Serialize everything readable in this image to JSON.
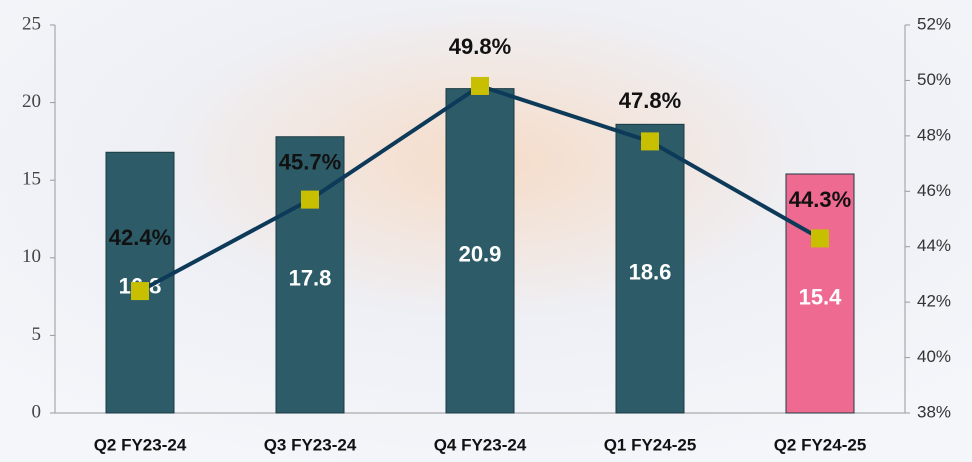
{
  "chart_data": {
    "type": "bar",
    "categories": [
      "Q2 FY23-24",
      "Q3 FY23-24",
      "Q4 FY23-24",
      "Q1 FY24-25",
      "Q2 FY24-25"
    ],
    "series": [
      {
        "type": "bar",
        "values": [
          16.8,
          17.8,
          20.9,
          18.6,
          15.4
        ],
        "colors": [
          "#2d5c68",
          "#2d5c68",
          "#2d5c68",
          "#2d5c68",
          "#ef6a90"
        ]
      },
      {
        "type": "line",
        "axis": "y2",
        "values": [
          42.4,
          45.7,
          49.8,
          47.8,
          44.3
        ],
        "value_labels": [
          "42.4%",
          "45.7%",
          "49.8%",
          "47.8%",
          "44.3%"
        ],
        "color": "#0e3a5a",
        "marker_color": "#c8bf00"
      }
    ],
    "ylim": [
      0,
      25
    ],
    "yticks": [
      0,
      5,
      10,
      15,
      20,
      25
    ],
    "y2lim": [
      38,
      52
    ],
    "y2ticks": [
      {
        "value": 38,
        "label": "38%"
      },
      {
        "value": 40,
        "label": "40%"
      },
      {
        "value": 42,
        "label": "42%"
      },
      {
        "value": 44,
        "label": "44%"
      },
      {
        "value": 46,
        "label": "46%"
      },
      {
        "value": 48,
        "label": "48%"
      },
      {
        "value": 50,
        "label": "50%"
      },
      {
        "value": 52,
        "label": "52%"
      }
    ]
  }
}
